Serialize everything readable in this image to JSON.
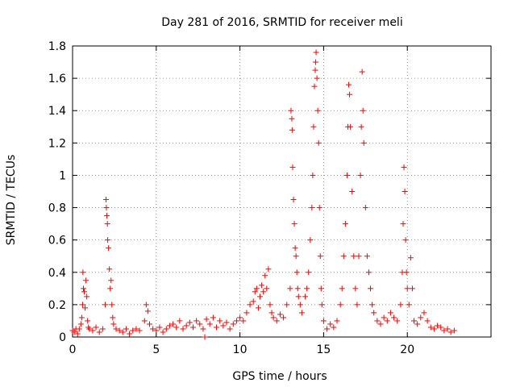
{
  "chart_data": {
    "type": "scatter",
    "title": "Day 281 of 2016, SRMTID for receiver meli",
    "xlabel": "GPS time / hours",
    "ylabel": "SRMTID / TECUs",
    "xlim": [
      0,
      25
    ],
    "ylim": [
      0,
      1.8
    ],
    "xticks": [
      0,
      5,
      10,
      15,
      20
    ],
    "yticks": [
      0,
      0.2,
      0.4,
      0.6,
      0.8,
      1,
      1.2,
      1.4,
      1.6,
      1.8
    ],
    "xtick_labels": [
      "0",
      "5",
      "10",
      "15",
      "20"
    ],
    "ytick_labels": [
      "0",
      "0.2",
      "0.4",
      "0.6",
      "0.8",
      "1",
      "1.2",
      "1.4",
      "1.6",
      "1.8"
    ],
    "grid": true,
    "marker": "+",
    "series": [
      {
        "name": "SRMTID",
        "color": "#ff0000",
        "points": [
          [
            0.0,
            0.04
          ],
          [
            0.1,
            0.03
          ],
          [
            0.2,
            0.05
          ],
          [
            0.3,
            0.02
          ],
          [
            0.4,
            0.05
          ],
          [
            0.5,
            0.08
          ],
          [
            0.55,
            0.12
          ],
          [
            0.6,
            0.2
          ],
          [
            0.62,
            0.4
          ],
          [
            0.65,
            0.3
          ],
          [
            0.7,
            0.28
          ],
          [
            0.75,
            0.18
          ],
          [
            0.8,
            0.35
          ],
          [
            0.85,
            0.25
          ],
          [
            0.9,
            0.1
          ],
          [
            0.95,
            0.06
          ],
          [
            1.0,
            0.05
          ],
          [
            1.2,
            0.04
          ],
          [
            1.4,
            0.06
          ],
          [
            1.6,
            0.03
          ],
          [
            1.8,
            0.05
          ],
          [
            1.95,
            0.2
          ],
          [
            2.0,
            0.85
          ],
          [
            2.02,
            0.8
          ],
          [
            2.05,
            0.75
          ],
          [
            2.08,
            0.7
          ],
          [
            2.1,
            0.6
          ],
          [
            2.15,
            0.55
          ],
          [
            2.2,
            0.42
          ],
          [
            2.25,
            0.3
          ],
          [
            2.3,
            0.35
          ],
          [
            2.35,
            0.2
          ],
          [
            2.4,
            0.12
          ],
          [
            2.45,
            0.08
          ],
          [
            2.6,
            0.05
          ],
          [
            2.8,
            0.04
          ],
          [
            3.0,
            0.03
          ],
          [
            3.2,
            0.05
          ],
          [
            3.4,
            0.02
          ],
          [
            3.6,
            0.04
          ],
          [
            3.8,
            0.05
          ],
          [
            4.0,
            0.04
          ],
          [
            4.3,
            0.1
          ],
          [
            4.4,
            0.2
          ],
          [
            4.5,
            0.16
          ],
          [
            4.6,
            0.08
          ],
          [
            4.8,
            0.05
          ],
          [
            5.0,
            0.04
          ],
          [
            5.2,
            0.06
          ],
          [
            5.4,
            0.03
          ],
          [
            5.6,
            0.05
          ],
          [
            5.8,
            0.07
          ],
          [
            6.0,
            0.08
          ],
          [
            6.2,
            0.06
          ],
          [
            6.4,
            0.1
          ],
          [
            6.6,
            0.05
          ],
          [
            6.8,
            0.07
          ],
          [
            7.0,
            0.09
          ],
          [
            7.2,
            0.06
          ],
          [
            7.4,
            0.1
          ],
          [
            7.6,
            0.08
          ],
          [
            7.8,
            0.05
          ],
          [
            7.9,
            0.0
          ],
          [
            8.0,
            0.11
          ],
          [
            8.2,
            0.08
          ],
          [
            8.4,
            0.12
          ],
          [
            8.6,
            0.06
          ],
          [
            8.8,
            0.1
          ],
          [
            9.0,
            0.07
          ],
          [
            9.2,
            0.09
          ],
          [
            9.4,
            0.05
          ],
          [
            9.6,
            0.08
          ],
          [
            9.8,
            0.1
          ],
          [
            10.0,
            0.12
          ],
          [
            10.2,
            0.1
          ],
          [
            10.4,
            0.15
          ],
          [
            10.6,
            0.2
          ],
          [
            10.8,
            0.22
          ],
          [
            10.9,
            0.28
          ],
          [
            11.0,
            0.3
          ],
          [
            11.1,
            0.18
          ],
          [
            11.2,
            0.25
          ],
          [
            11.3,
            0.32
          ],
          [
            11.4,
            0.28
          ],
          [
            11.5,
            0.38
          ],
          [
            11.6,
            0.3
          ],
          [
            11.7,
            0.42
          ],
          [
            11.8,
            0.2
          ],
          [
            11.9,
            0.15
          ],
          [
            12.0,
            0.12
          ],
          [
            12.2,
            0.1
          ],
          [
            12.4,
            0.14
          ],
          [
            12.6,
            0.12
          ],
          [
            12.8,
            0.2
          ],
          [
            13.0,
            0.3
          ],
          [
            13.05,
            1.4
          ],
          [
            13.1,
            1.35
          ],
          [
            13.12,
            1.28
          ],
          [
            13.15,
            1.05
          ],
          [
            13.2,
            0.85
          ],
          [
            13.25,
            0.7
          ],
          [
            13.3,
            0.55
          ],
          [
            13.35,
            0.5
          ],
          [
            13.4,
            0.4
          ],
          [
            13.45,
            0.3
          ],
          [
            13.5,
            0.25
          ],
          [
            13.6,
            0.2
          ],
          [
            13.7,
            0.15
          ],
          [
            13.9,
            0.25
          ],
          [
            14.0,
            0.3
          ],
          [
            14.1,
            0.4
          ],
          [
            14.2,
            0.6
          ],
          [
            14.3,
            0.8
          ],
          [
            14.35,
            1.0
          ],
          [
            14.4,
            1.3
          ],
          [
            14.45,
            1.55
          ],
          [
            14.5,
            1.65
          ],
          [
            14.52,
            1.7
          ],
          [
            14.55,
            1.76
          ],
          [
            14.6,
            1.6
          ],
          [
            14.65,
            1.4
          ],
          [
            14.7,
            1.2
          ],
          [
            14.75,
            0.8
          ],
          [
            14.8,
            0.5
          ],
          [
            14.85,
            0.3
          ],
          [
            14.9,
            0.2
          ],
          [
            15.0,
            0.1
          ],
          [
            15.2,
            0.05
          ],
          [
            15.4,
            0.08
          ],
          [
            15.6,
            0.06
          ],
          [
            15.8,
            0.1
          ],
          [
            16.0,
            0.2
          ],
          [
            16.1,
            0.3
          ],
          [
            16.2,
            0.5
          ],
          [
            16.3,
            0.7
          ],
          [
            16.4,
            1.0
          ],
          [
            16.45,
            1.3
          ],
          [
            16.5,
            1.56
          ],
          [
            16.55,
            1.5
          ],
          [
            16.6,
            1.3
          ],
          [
            16.7,
            0.9
          ],
          [
            16.8,
            0.5
          ],
          [
            16.9,
            0.3
          ],
          [
            17.0,
            0.2
          ],
          [
            17.1,
            0.5
          ],
          [
            17.2,
            1.0
          ],
          [
            17.25,
            1.3
          ],
          [
            17.3,
            1.64
          ],
          [
            17.35,
            1.4
          ],
          [
            17.4,
            1.2
          ],
          [
            17.5,
            0.8
          ],
          [
            17.6,
            0.5
          ],
          [
            17.7,
            0.4
          ],
          [
            17.8,
            0.3
          ],
          [
            17.9,
            0.2
          ],
          [
            18.0,
            0.15
          ],
          [
            18.2,
            0.1
          ],
          [
            18.4,
            0.08
          ],
          [
            18.6,
            0.12
          ],
          [
            18.8,
            0.1
          ],
          [
            19.0,
            0.15
          ],
          [
            19.2,
            0.12
          ],
          [
            19.4,
            0.1
          ],
          [
            19.6,
            0.2
          ],
          [
            19.7,
            0.4
          ],
          [
            19.75,
            0.7
          ],
          [
            19.8,
            1.05
          ],
          [
            19.85,
            0.9
          ],
          [
            19.9,
            0.6
          ],
          [
            19.95,
            0.4
          ],
          [
            20.0,
            0.3
          ],
          [
            20.1,
            0.2
          ],
          [
            20.2,
            0.49
          ],
          [
            20.3,
            0.3
          ],
          [
            20.4,
            0.1
          ],
          [
            20.6,
            0.08
          ],
          [
            20.8,
            0.12
          ],
          [
            21.0,
            0.15
          ],
          [
            21.2,
            0.1
          ],
          [
            21.4,
            0.06
          ],
          [
            21.6,
            0.05
          ],
          [
            21.8,
            0.07
          ],
          [
            22.0,
            0.06
          ],
          [
            22.2,
            0.04
          ],
          [
            22.4,
            0.05
          ],
          [
            22.6,
            0.03
          ],
          [
            22.8,
            0.04
          ]
        ]
      }
    ]
  }
}
